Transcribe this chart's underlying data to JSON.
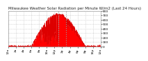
{
  "title": "Milwaukee Weather Solar Radiation per Minute W/m2 (Last 24 Hours)",
  "background_color": "#ffffff",
  "fill_color": "#ff0000",
  "line_color": "#dd0000",
  "grid_color": "#bbbbbb",
  "title_fontsize": 4.0,
  "tick_fontsize": 3.2,
  "ylim": [
    0,
    800
  ],
  "yticks": [
    0,
    100,
    200,
    300,
    400,
    500,
    600,
    700,
    800
  ],
  "xlim": [
    0,
    1440
  ],
  "x_tick_positions": [
    0,
    120,
    240,
    360,
    480,
    600,
    720,
    840,
    960,
    1080,
    1200,
    1320,
    1440
  ],
  "x_tick_labels": [
    "12a",
    "2a",
    "4a",
    "6a",
    "8a",
    "10a",
    "12p",
    "2p",
    "4p",
    "6p",
    "8p",
    "10p",
    "12a"
  ],
  "vlines": [
    780,
    900
  ],
  "num_points": 1440
}
